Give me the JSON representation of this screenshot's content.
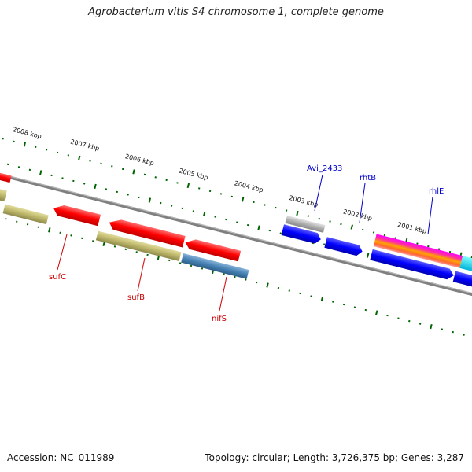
{
  "title": "Agrobacterium vitis S4 chromosome 1, complete genome",
  "footer": {
    "accession": "Accession: NC_011989",
    "summary": "Topology: circular; Length: 3,726,375 bp; Genes: 3,287"
  },
  "ruler_labels": [
    "2008 kbp",
    "2007 kbp",
    "2006 kbp",
    "2005 kbp",
    "2004 kbp",
    "2003 kbp",
    "2002 kbp",
    "2001 kbp"
  ],
  "gene_labels": {
    "avi_2433": "Avi_2433",
    "rhtB": "rhtB",
    "rhlE": "rhlE",
    "sufC": "sufC",
    "sufB": "sufB",
    "nifS": "nifS"
  },
  "colors": {
    "cds_red": "#ff0000",
    "cds_olive": "#bdb76b",
    "cds_steelblue": "#4682b4",
    "cds_blue": "#0000ff",
    "cds_gray": "#aaaaaa",
    "backbone": "#808080",
    "tick_green": "#006400",
    "label_red": "#cc0000",
    "label_blue": "#0000cc"
  }
}
